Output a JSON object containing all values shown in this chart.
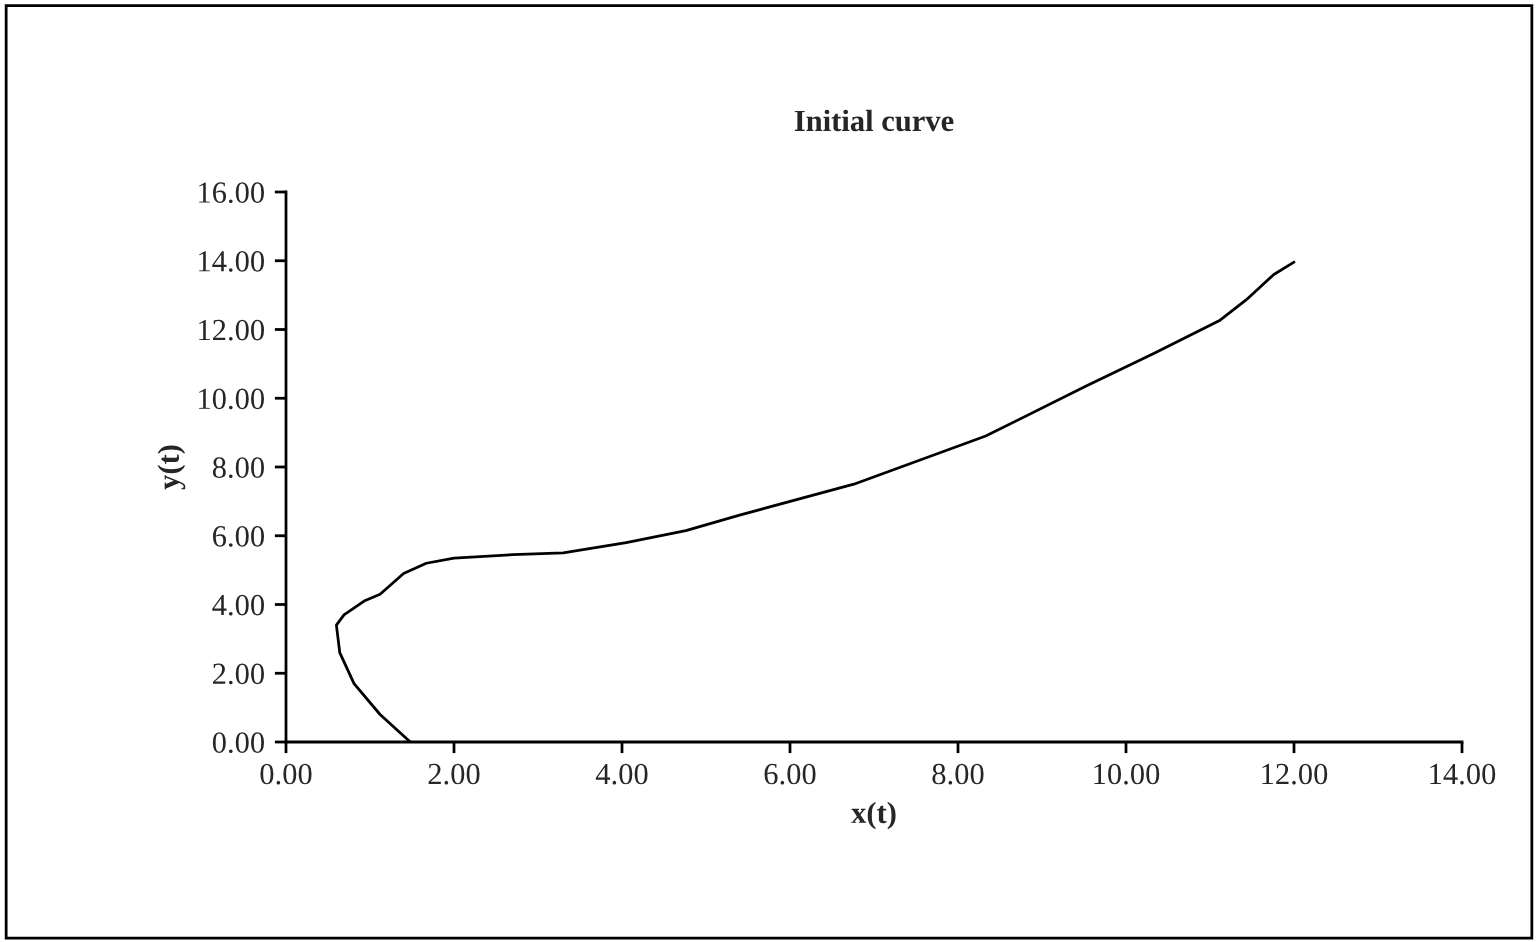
{
  "chart_data": {
    "type": "line",
    "title": "Initial curve",
    "xlabel": "x(t)",
    "ylabel": "y(t)",
    "xlim": [
      0,
      14
    ],
    "ylim": [
      0,
      16
    ],
    "xticks": [
      {
        "value": 0,
        "label": "0.00"
      },
      {
        "value": 2,
        "label": "2.00"
      },
      {
        "value": 4,
        "label": "4.00"
      },
      {
        "value": 6,
        "label": "6.00"
      },
      {
        "value": 8,
        "label": "8.00"
      },
      {
        "value": 10,
        "label": "10.00"
      },
      {
        "value": 12,
        "label": "12.00"
      },
      {
        "value": 14,
        "label": "14.00"
      }
    ],
    "yticks": [
      {
        "value": 0,
        "label": "0.00"
      },
      {
        "value": 2,
        "label": "2.00"
      },
      {
        "value": 4,
        "label": "4.00"
      },
      {
        "value": 6,
        "label": "6.00"
      },
      {
        "value": 8,
        "label": "8.00"
      },
      {
        "value": 10,
        "label": "10.00"
      },
      {
        "value": 12,
        "label": "12.00"
      },
      {
        "value": 14,
        "label": "14.00"
      },
      {
        "value": 16,
        "label": "16.00"
      }
    ],
    "grid": false,
    "legend": false,
    "marker": "none",
    "line_style": "solid",
    "series": [
      {
        "color": "#000000",
        "x": [
          1.48,
          1.12,
          0.81,
          0.64,
          0.6,
          0.69,
          0.93,
          1.12,
          1.4,
          1.67,
          2.0,
          2.7,
          3.3,
          4.05,
          4.76,
          5.4,
          6.76,
          8.33,
          9.52,
          10.33,
          11.12,
          11.43,
          11.76,
          12.0
        ],
        "values": [
          0,
          0.8,
          1.7,
          2.6,
          3.4,
          3.7,
          4.1,
          4.3,
          4.9,
          5.2,
          5.35,
          5.45,
          5.5,
          5.8,
          6.15,
          6.6,
          7.5,
          8.9,
          10.35,
          11.3,
          12.27,
          12.86,
          13.6,
          13.96
        ]
      }
    ]
  }
}
